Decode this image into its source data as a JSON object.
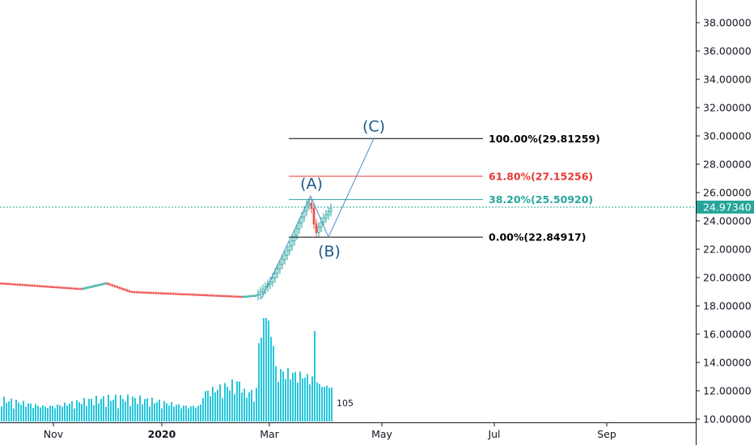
{
  "chart_data": {
    "type": "candlestick",
    "y_axis": {
      "range": [
        10,
        39.5
      ],
      "ticks": [
        "38.00000",
        "36.00000",
        "34.00000",
        "32.00000",
        "30.00000",
        "28.00000",
        "26.00000",
        "24.00000",
        "22.00000",
        "20.00000",
        "18.00000",
        "16.00000",
        "14.00000",
        "12.00000",
        "10.00000"
      ]
    },
    "x_axis": {
      "ticks": [
        {
          "label": "Nov",
          "bold": false
        },
        {
          "label": "2020",
          "bold": true
        },
        {
          "label": "Mar",
          "bold": false
        },
        {
          "label": "May",
          "bold": false
        },
        {
          "label": "Jul",
          "bold": false
        },
        {
          "label": "Sep",
          "bold": false
        }
      ]
    },
    "current_price": {
      "label": "24.97340",
      "value": 24.9734,
      "color": "#26a69a"
    },
    "fib_levels": [
      {
        "label": "100.00%(29.81259)",
        "value": 29.81259,
        "color": "#000000"
      },
      {
        "label": "61.80%(27.15256)",
        "value": 27.15256,
        "color": "#e53935"
      },
      {
        "label": "38.20%(25.50920)",
        "value": 25.5092,
        "color": "#26a69a"
      },
      {
        "label": "0.00%(22.84917)",
        "value": 22.84917,
        "color": "#000000"
      }
    ],
    "wave_points": [
      {
        "label": "(A)",
        "value": 25.75
      },
      {
        "label": "(B)",
        "value": 22.85
      },
      {
        "label": "(C)",
        "value": 29.81
      }
    ],
    "volume_badge": "105",
    "colors": {
      "up": "#26a69a",
      "down": "#ef5350",
      "volume": "#26c6da",
      "wave": "#4a90c8"
    }
  }
}
